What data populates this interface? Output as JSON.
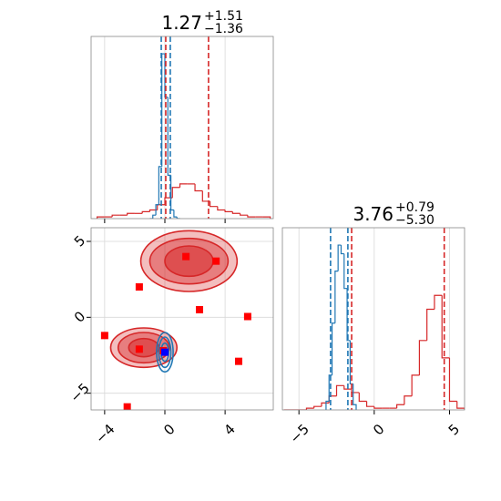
{
  "chart_data": [
    {
      "type": "histogram",
      "title": {
        "value": "1.27",
        "upper": "+1.51",
        "lower": "−1.36"
      },
      "xlim": [
        -4.9,
        7.2
      ],
      "xticks": [
        -4,
        0,
        4
      ],
      "ylim": [
        0,
        1.05
      ],
      "grid": true,
      "series": [
        {
          "color": "#d62728",
          "bins": [
            -4.5,
            -4,
            -3.5,
            -3,
            -2.5,
            -2,
            -1.5,
            -1,
            -0.5,
            0,
            0.5,
            1,
            1.5,
            2,
            2.5,
            3,
            3.5,
            4,
            4.5,
            5,
            5.5,
            6,
            6.5,
            7
          ],
          "values": [
            0.01,
            0.01,
            0.02,
            0.02,
            0.03,
            0.03,
            0.04,
            0.05,
            0.08,
            0.12,
            0.18,
            0.2,
            0.2,
            0.16,
            0.1,
            0.07,
            0.05,
            0.04,
            0.03,
            0.02,
            0.01,
            0.01,
            0.01
          ]
        },
        {
          "color": "#1f77b4",
          "bins": [
            -1,
            -0.8,
            -0.6,
            -0.4,
            -0.2,
            0,
            0.2,
            0.4,
            0.6,
            0.8,
            1
          ],
          "values": [
            0,
            0.02,
            0.08,
            0.3,
            0.95,
            0.7,
            0.25,
            0.05,
            0.01,
            0
          ]
        }
      ],
      "lines": [
        {
          "color": "#1f77b4",
          "x": [
            -0.24,
            0.36
          ]
        },
        {
          "color": "#d62728",
          "x": [
            0.06,
            2.9
          ]
        }
      ]
    },
    {
      "type": "scatter2d",
      "xlim": [
        -4.9,
        7.2
      ],
      "ylim": [
        -6.1,
        5.9
      ],
      "grid": true,
      "xticks": [
        {
          "value": -4,
          "label": "−4"
        },
        0,
        4
      ],
      "yticks": [
        5,
        0,
        {
          "value": -5,
          "label": "−5"
        }
      ],
      "contours": [
        {
          "color": "#d62728",
          "filled": true,
          "center": [
            1.6,
            3.7
          ],
          "radii": [
            [
              3.2,
              2.0
            ],
            [
              2.6,
              1.5
            ],
            [
              1.6,
              1.0
            ]
          ]
        },
        {
          "color": "#d62728",
          "filled": true,
          "center": [
            -1.4,
            -2.0
          ],
          "radii": [
            [
              2.2,
              1.3
            ],
            [
              1.7,
              1.0
            ],
            [
              1.0,
              0.6
            ]
          ]
        },
        {
          "color": "#1f77b4",
          "filled": false,
          "center": [
            0,
            -2.3
          ],
          "radii": [
            [
              0.55,
              1.3
            ],
            [
              0.4,
              1.0
            ],
            [
              0.25,
              0.6
            ]
          ]
        }
      ],
      "points": [
        {
          "color": "#ff0000",
          "x": [
            1.4,
            3.4,
            -1.7,
            2.3,
            5.5,
            -4.0,
            -1.7,
            -0.1,
            4.9,
            -2.5
          ],
          "y": [
            4.0,
            3.7,
            2.0,
            0.5,
            0.05,
            -1.2,
            -2.1,
            -2.2,
            -2.9,
            -5.9
          ]
        },
        {
          "color": "#0000ff",
          "x": [
            0
          ],
          "y": [
            -2.3
          ]
        }
      ]
    },
    {
      "type": "histogram",
      "title": {
        "value": "3.76",
        "upper": "+0.79",
        "lower": "−5.30"
      },
      "xlim": [
        -6.1,
        6.0
      ],
      "xticks": [
        {
          "value": -5,
          "label": "−5"
        },
        0,
        5
      ],
      "ylim": [
        0,
        1.05
      ],
      "grid": true,
      "series": [
        {
          "color": "#d62728",
          "bins": [
            -6,
            -5.5,
            -5,
            -4.5,
            -4,
            -3.5,
            -3,
            -2.5,
            -2,
            -1.5,
            -1,
            -0.5,
            0,
            0.5,
            1,
            1.5,
            2,
            2.5,
            3,
            3.5,
            4,
            4.5,
            5,
            5.5,
            6
          ],
          "values": [
            0,
            0,
            0,
            0.01,
            0.02,
            0.04,
            0.08,
            0.14,
            0.12,
            0.1,
            0.05,
            0.02,
            0.01,
            0.01,
            0.01,
            0.03,
            0.08,
            0.2,
            0.4,
            0.58,
            0.66,
            0.3,
            0.05,
            0.01
          ]
        },
        {
          "color": "#1f77b4",
          "bins": [
            -3.2,
            -3,
            -2.8,
            -2.6,
            -2.4,
            -2.2,
            -2,
            -1.8,
            -1.6,
            -1.4,
            -1.2
          ],
          "values": [
            0.05,
            0.2,
            0.5,
            0.8,
            0.95,
            0.9,
            0.7,
            0.4,
            0.15,
            0.03
          ]
        }
      ],
      "lines": [
        {
          "color": "#1f77b4",
          "x": [
            -2.9,
            -1.75
          ]
        },
        {
          "color": "#d62728",
          "x": [
            -1.5,
            4.65
          ]
        }
      ]
    }
  ]
}
